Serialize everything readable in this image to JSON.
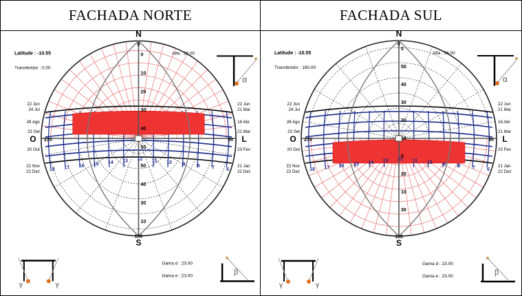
{
  "panels": [
    {
      "id": "norte",
      "title": "FACHADA NORTE",
      "latitude": "Latitude : -10.55",
      "transferidor": "Transferidor : 0.00",
      "alfa": "Alfa : 56.00",
      "gama_d": "Gama d : 23.00",
      "gama_e": "Gama e : 23.00",
      "shade_side": "north",
      "hours": [
        "18",
        "17",
        "16",
        "15",
        "14",
        "13",
        "12",
        "11",
        "10",
        "9",
        "8",
        "7",
        "6"
      ],
      "altitudes": [
        "0",
        "10",
        "20",
        "30",
        "40",
        "50",
        "50",
        "40",
        "30",
        "10"
      ]
    },
    {
      "id": "sul",
      "title": "FACHADA SUL",
      "latitude": "Latitude : -10.55",
      "transferidor": "Transferidor : 180.00",
      "alfa": "Alfa : 56.00",
      "gama_d": "Gama d : 23.00",
      "gama_e": "Gama e : 23.00",
      "shade_side": "south",
      "hours": [
        "18",
        "17",
        "16",
        "15",
        "14",
        "13",
        "12",
        "11",
        "10",
        "9",
        "8",
        "7",
        "6"
      ],
      "altitudes": [
        "0",
        "50",
        "40",
        "30",
        "20",
        "10",
        "0",
        "20",
        "10",
        "30"
      ]
    }
  ],
  "compass": {
    "n": "N",
    "s": "S",
    "o": "O",
    "l": "L",
    "o_deg": "270",
    "l_deg": "90",
    "s_deg": "180",
    "n_deg": "0"
  },
  "date_labels_left": [
    "22 Jun",
    "24 Jul",
    "28 Ago",
    "23 Set",
    "20 Out",
    "22 Nov",
    "22 Dez"
  ],
  "date_labels_right": [
    "22 Jun",
    "21 Mai",
    "16 Abr",
    "21 Mar",
    "23 Fev",
    "21 Jan",
    "22 Dez"
  ],
  "symbols": {
    "alpha": "α",
    "beta": "β",
    "gamma": "γ"
  },
  "colors": {
    "shade": "#ee3333",
    "mask_lines": "#e88080",
    "solar_lines": "#1a2a8a",
    "grid": "#444444"
  }
}
